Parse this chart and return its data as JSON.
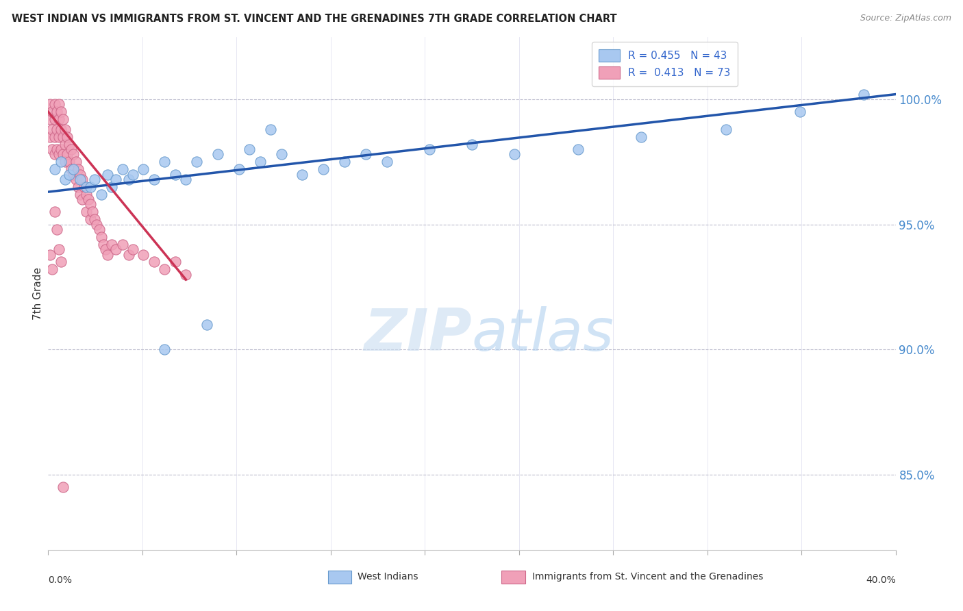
{
  "title": "WEST INDIAN VS IMMIGRANTS FROM ST. VINCENT AND THE GRENADINES 7TH GRADE CORRELATION CHART",
  "source": "Source: ZipAtlas.com",
  "ylabel": "7th Grade",
  "ylabel_right_ticks": [
    "100.0%",
    "95.0%",
    "90.0%",
    "85.0%"
  ],
  "ylabel_right_vals": [
    1.0,
    0.95,
    0.9,
    0.85
  ],
  "xmin": 0.0,
  "xmax": 0.4,
  "ymin": 0.82,
  "ymax": 1.025,
  "blue_color": "#A8C8F0",
  "pink_color": "#F0A0B8",
  "blue_edge": "#6699CC",
  "pink_edge": "#CC6688",
  "trendline_blue": "#2255AA",
  "trendline_pink": "#CC3355",
  "watermark_zip": "ZIP",
  "watermark_atlas": "atlas",
  "blue_scatter_x": [
    0.003,
    0.006,
    0.008,
    0.01,
    0.012,
    0.015,
    0.018,
    0.02,
    0.022,
    0.025,
    0.028,
    0.03,
    0.032,
    0.035,
    0.038,
    0.04,
    0.045,
    0.05,
    0.055,
    0.06,
    0.065,
    0.07,
    0.08,
    0.09,
    0.1,
    0.11,
    0.12,
    0.13,
    0.14,
    0.15,
    0.16,
    0.18,
    0.2,
    0.22,
    0.25,
    0.28,
    0.32,
    0.355,
    0.385,
    0.055,
    0.075,
    0.095,
    0.105
  ],
  "blue_scatter_y": [
    0.972,
    0.975,
    0.968,
    0.97,
    0.972,
    0.968,
    0.965,
    0.965,
    0.968,
    0.962,
    0.97,
    0.965,
    0.968,
    0.972,
    0.968,
    0.97,
    0.972,
    0.968,
    0.975,
    0.97,
    0.968,
    0.975,
    0.978,
    0.972,
    0.975,
    0.978,
    0.97,
    0.972,
    0.975,
    0.978,
    0.975,
    0.98,
    0.982,
    0.978,
    0.98,
    0.985,
    0.988,
    0.995,
    1.002,
    0.9,
    0.91,
    0.98,
    0.988
  ],
  "pink_scatter_x": [
    0.001,
    0.001,
    0.001,
    0.002,
    0.002,
    0.002,
    0.003,
    0.003,
    0.003,
    0.003,
    0.004,
    0.004,
    0.004,
    0.005,
    0.005,
    0.005,
    0.005,
    0.006,
    0.006,
    0.006,
    0.007,
    0.007,
    0.007,
    0.008,
    0.008,
    0.008,
    0.009,
    0.009,
    0.01,
    0.01,
    0.011,
    0.011,
    0.012,
    0.012,
    0.013,
    0.013,
    0.014,
    0.014,
    0.015,
    0.015,
    0.016,
    0.016,
    0.017,
    0.018,
    0.018,
    0.019,
    0.02,
    0.02,
    0.021,
    0.022,
    0.023,
    0.024,
    0.025,
    0.026,
    0.027,
    0.028,
    0.03,
    0.032,
    0.035,
    0.038,
    0.04,
    0.045,
    0.05,
    0.055,
    0.06,
    0.065,
    0.001,
    0.002,
    0.003,
    0.004,
    0.005,
    0.006,
    0.007
  ],
  "pink_scatter_y": [
    0.998,
    0.992,
    0.985,
    0.995,
    0.988,
    0.98,
    0.998,
    0.992,
    0.985,
    0.978,
    0.995,
    0.988,
    0.98,
    0.998,
    0.992,
    0.985,
    0.978,
    0.995,
    0.988,
    0.98,
    0.992,
    0.985,
    0.978,
    0.988,
    0.982,
    0.975,
    0.985,
    0.978,
    0.982,
    0.975,
    0.98,
    0.972,
    0.978,
    0.97,
    0.975,
    0.968,
    0.972,
    0.965,
    0.97,
    0.962,
    0.968,
    0.96,
    0.965,
    0.962,
    0.955,
    0.96,
    0.958,
    0.952,
    0.955,
    0.952,
    0.95,
    0.948,
    0.945,
    0.942,
    0.94,
    0.938,
    0.942,
    0.94,
    0.942,
    0.938,
    0.94,
    0.938,
    0.935,
    0.932,
    0.935,
    0.93,
    0.938,
    0.932,
    0.955,
    0.948,
    0.94,
    0.935,
    0.845
  ],
  "trend_blue_x0": 0.0,
  "trend_blue_y0": 0.963,
  "trend_blue_x1": 0.4,
  "trend_blue_y1": 1.002,
  "trend_pink_x0": 0.0,
  "trend_pink_y0": 0.995,
  "trend_pink_x1": 0.065,
  "trend_pink_y1": 0.928
}
